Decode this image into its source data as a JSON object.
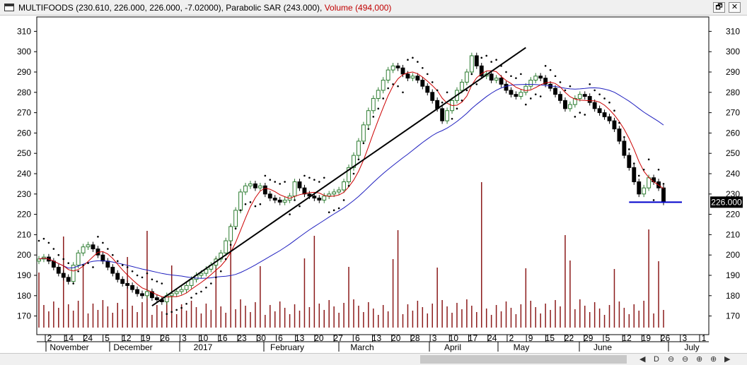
{
  "window": {
    "title_main": "MULTIFOODS (230.610, 226.000, 226.000, -7.02000), Parabolic SAR (243.000),",
    "title_volume": "Volume (494,000)",
    "restore_label": "🗗",
    "close_label": "✕"
  },
  "toolbar": {
    "tools": [
      {
        "name": "prev-icon",
        "glyph": "◀"
      },
      {
        "name": "draw-icon",
        "glyph": "D"
      },
      {
        "name": "zoom-icon-1",
        "glyph": "⊖"
      },
      {
        "name": "zoom-icon-2",
        "glyph": "⊖"
      },
      {
        "name": "zoom-icon-3",
        "glyph": "⊕"
      },
      {
        "name": "zoom-icon-4",
        "glyph": "⊕"
      },
      {
        "name": "next-icon",
        "glyph": "▶"
      }
    ]
  },
  "colors": {
    "up_candle": "#ffffff",
    "down_candle": "#000000",
    "candle_outline_up": "#2e7d32",
    "ma_short": "#cc0000",
    "ma_long": "#1f1fbf",
    "sar_dots": "#000000",
    "volume": "#8b1a1a",
    "trendline": "#000000",
    "support_line": "#0000cc",
    "price_tag_bg": "#000000"
  },
  "chart_data": {
    "type": "candlestick",
    "ylim": [
      165,
      315
    ],
    "y_ticks": [
      170,
      180,
      190,
      200,
      210,
      220,
      230,
      240,
      250,
      260,
      270,
      280,
      290,
      300,
      310
    ],
    "last_price_label": "226.000",
    "x_day_ticks": [
      "2",
      "14",
      "24",
      "5",
      "12",
      "19",
      "26",
      "3",
      "10",
      "16",
      "23",
      "30",
      "6",
      "13",
      "20",
      "27",
      "6",
      "13",
      "20",
      "28",
      "3",
      "10",
      "17",
      "24",
      "2",
      "9",
      "15",
      "22",
      "29",
      "5",
      "12",
      "19",
      "26",
      "3",
      "1"
    ],
    "x_month_labels": [
      "November",
      "December",
      "2017",
      "February",
      "March",
      "April",
      "May",
      "June",
      "July"
    ],
    "close": [
      198,
      199,
      197,
      194,
      191,
      189,
      187,
      195,
      201,
      204,
      205,
      203,
      200,
      197,
      194,
      191,
      188,
      186,
      185,
      183,
      181,
      180,
      182,
      179,
      178,
      177,
      180,
      181,
      182,
      183,
      185,
      188,
      190,
      191,
      193,
      195,
      198,
      201,
      207,
      214,
      222,
      231,
      234,
      235,
      233,
      234,
      230,
      228,
      227,
      226,
      227,
      229,
      236,
      233,
      230,
      229,
      228,
      227,
      229,
      230,
      231,
      232,
      236,
      243,
      249,
      256,
      264,
      271,
      277,
      281,
      286,
      291,
      293,
      292,
      289,
      287,
      288,
      286,
      283,
      280,
      276,
      272,
      266,
      271,
      276,
      281,
      285,
      290,
      298,
      293,
      288,
      289,
      286,
      287,
      284,
      281,
      279,
      278,
      280,
      283,
      286,
      288,
      287,
      284,
      282,
      279,
      276,
      272,
      274,
      277,
      279,
      278,
      275,
      272,
      270,
      268,
      266,
      262,
      256,
      249,
      243,
      236,
      230,
      233,
      238,
      236,
      233,
      226
    ],
    "volume_hint": "volume bars shown on secondary scale, peaks ~ 300 (no axis printed)"
  }
}
